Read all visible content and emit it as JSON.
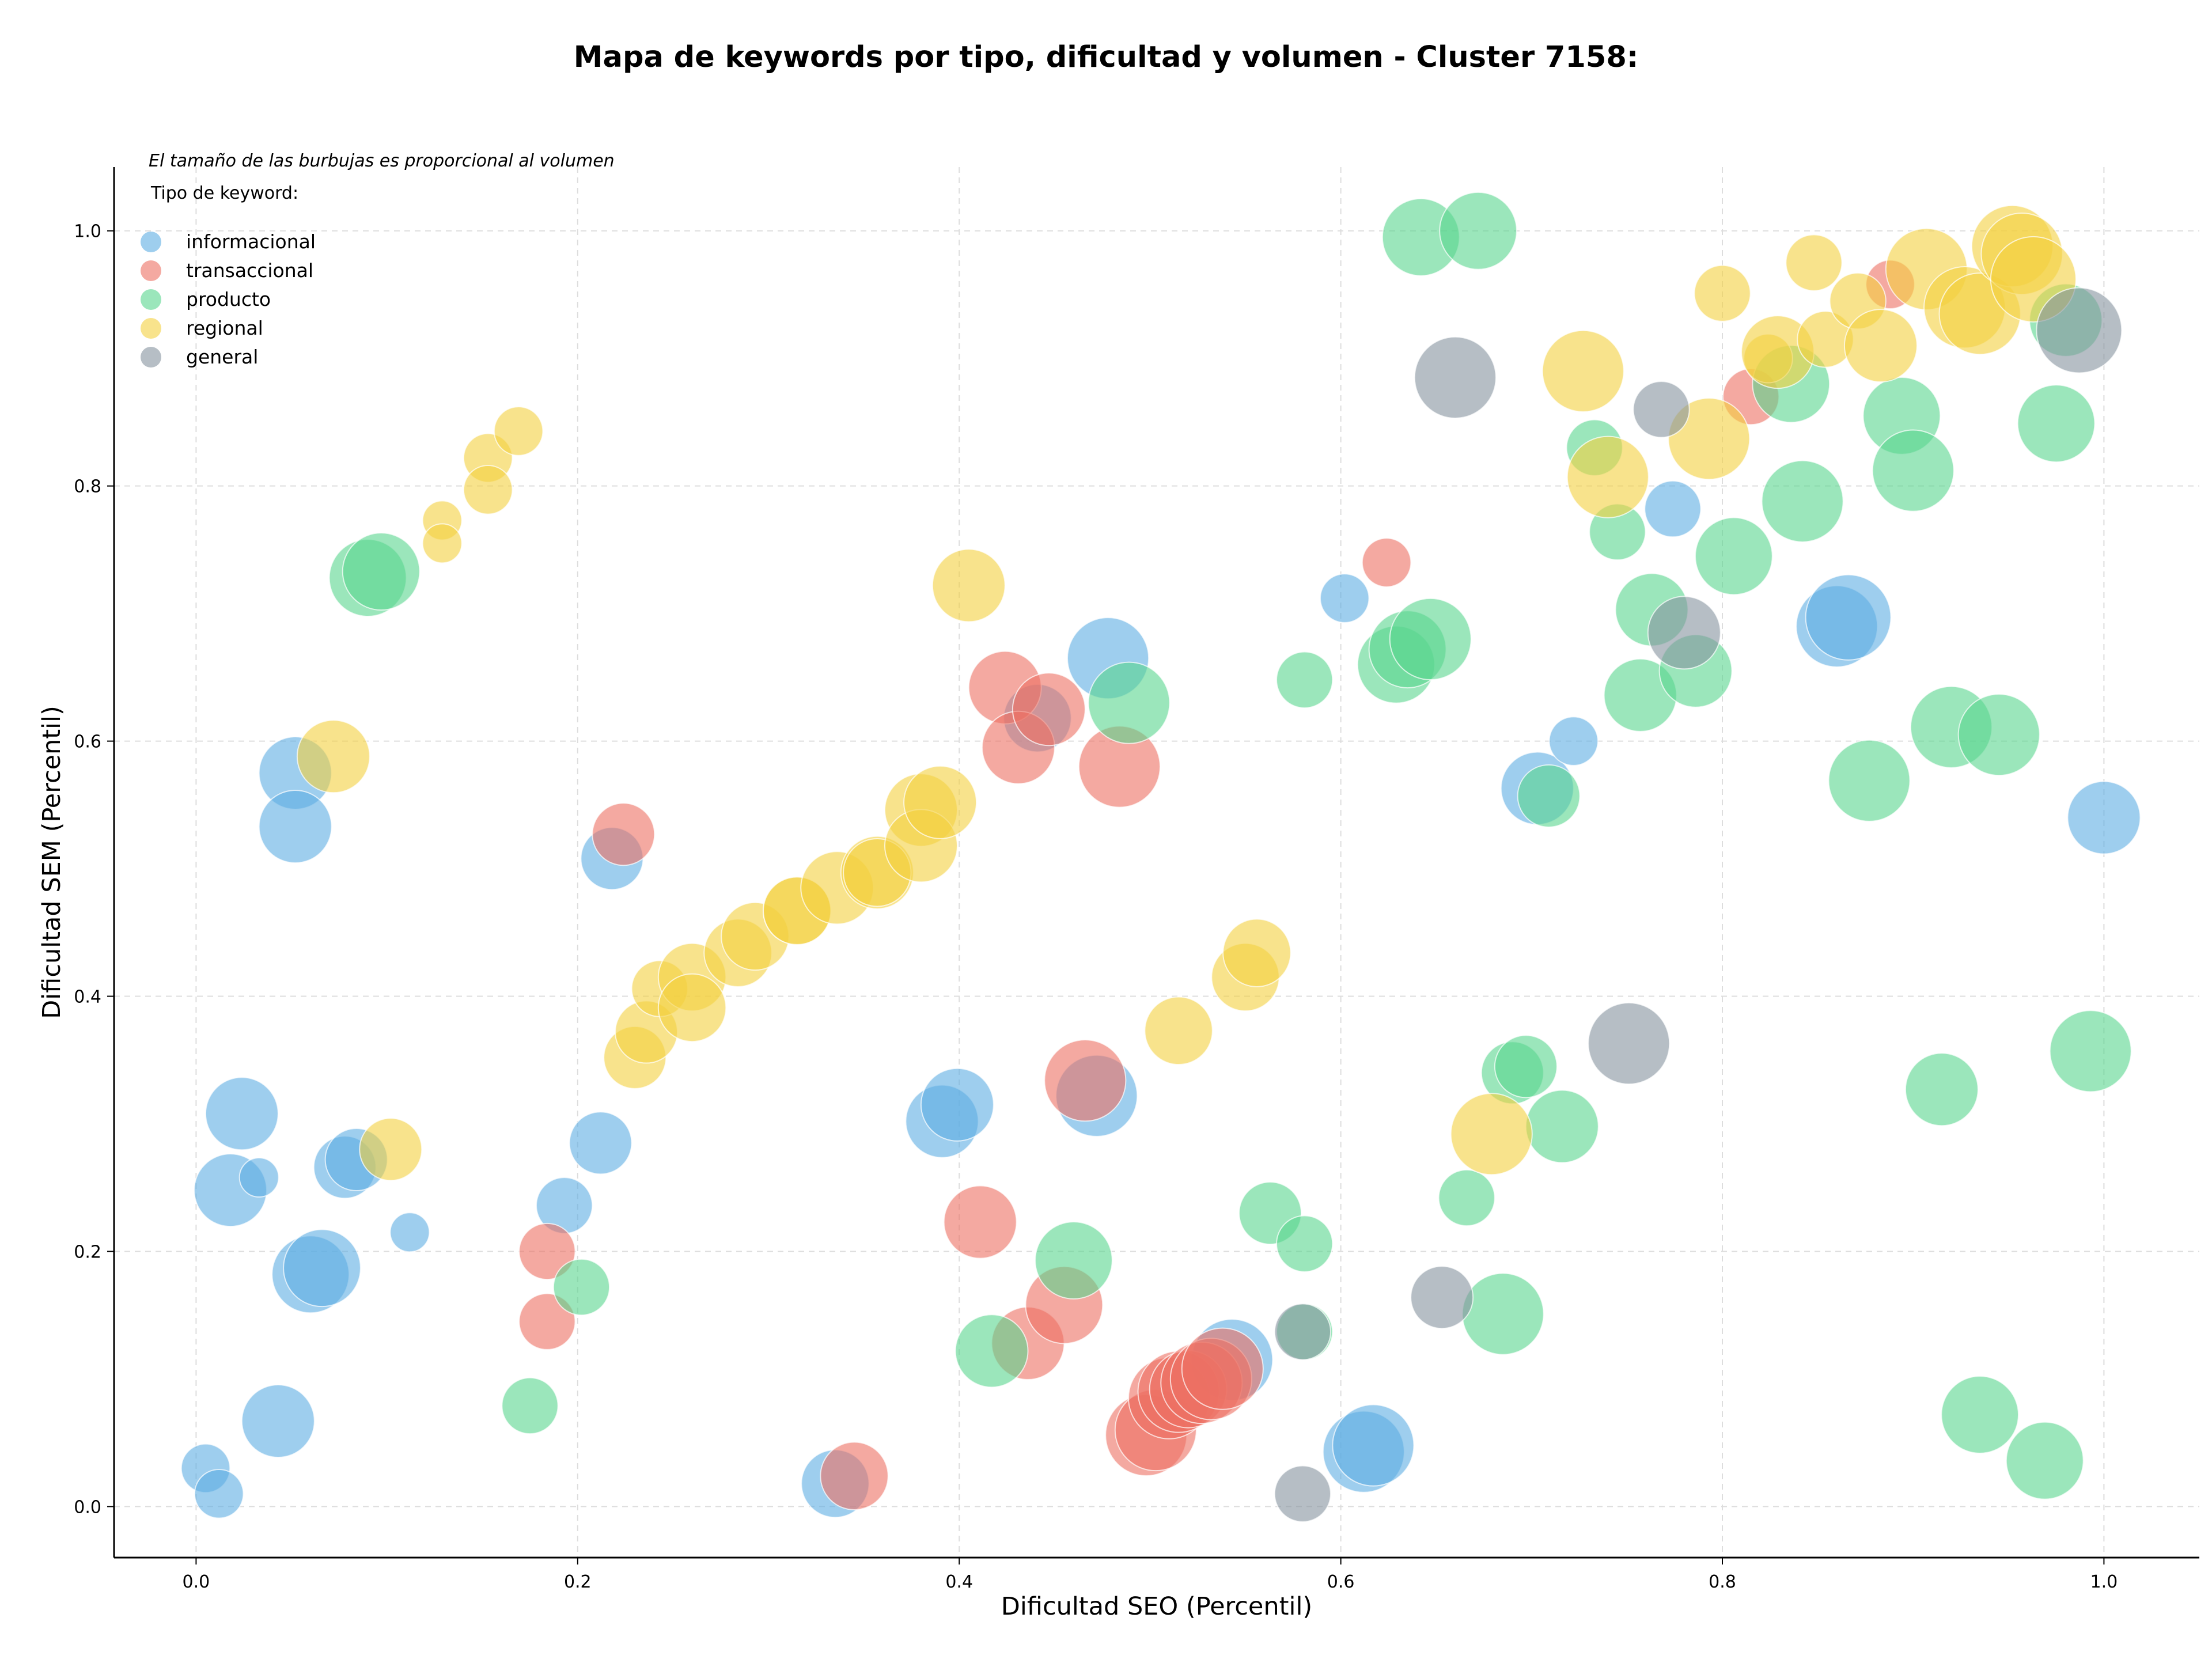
{
  "chart_data": {
    "type": "scatter",
    "title": "Mapa de keywords por tipo, dificultad y volumen - Cluster 7158:",
    "xlabel": "Dificultad SEO (Percentil)",
    "ylabel": "Dificultad SEM (Percentil)",
    "note": "El tamaño de las burbujas es proporcional al volumen",
    "legend_title": "Tipo de keyword:",
    "legend_position": "top-left",
    "grid": true,
    "xlim": [
      -0.043,
      1.05
    ],
    "ylim": [
      -0.04,
      1.05
    ],
    "xticks": [
      "0.0",
      "0.2",
      "0.4",
      "0.6",
      "0.8",
      "1.0"
    ],
    "yticks": [
      "0.0",
      "0.2",
      "0.4",
      "0.6",
      "0.8",
      "1.0"
    ],
    "size_encoding": "volume (relative, 1-10)",
    "series": [
      {
        "name": "informacional",
        "color": "#5DADE2",
        "points": [
          [
            0.005,
            0.03,
            2
          ],
          [
            0.012,
            0.01,
            2
          ],
          [
            0.018,
            0.248,
            6
          ],
          [
            0.024,
            0.308,
            6
          ],
          [
            0.033,
            0.258,
            1
          ],
          [
            0.043,
            0.067,
            6
          ],
          [
            0.052,
            0.575,
            6
          ],
          [
            0.052,
            0.533,
            6
          ],
          [
            0.06,
            0.182,
            7
          ],
          [
            0.066,
            0.187,
            7
          ],
          [
            0.078,
            0.266,
            4
          ],
          [
            0.084,
            0.272,
            4
          ],
          [
            0.112,
            0.215,
            1
          ],
          [
            0.193,
            0.236,
            3
          ],
          [
            0.212,
            0.285,
            4
          ],
          [
            0.218,
            0.508,
            4
          ],
          [
            0.335,
            0.018,
            5
          ],
          [
            0.391,
            0.302,
            6
          ],
          [
            0.399,
            0.315,
            6
          ],
          [
            0.441,
            0.618,
            5
          ],
          [
            0.472,
            0.322,
            8
          ],
          [
            0.478,
            0.665,
            8
          ],
          [
            0.543,
            0.115,
            8
          ],
          [
            0.602,
            0.712,
            2
          ],
          [
            0.612,
            0.043,
            8
          ],
          [
            0.617,
            0.048,
            8
          ],
          [
            0.703,
            0.563,
            6
          ],
          [
            0.722,
            0.6,
            2
          ],
          [
            0.774,
            0.782,
            3
          ],
          [
            0.86,
            0.69,
            8
          ],
          [
            0.866,
            0.697,
            9
          ],
          [
            1.0,
            0.54,
            6
          ]
        ]
      },
      {
        "name": "transaccional",
        "color": "#EC7063",
        "points": [
          [
            0.184,
            0.2,
            3
          ],
          [
            0.184,
            0.145,
            3
          ],
          [
            0.224,
            0.527,
            4
          ],
          [
            0.345,
            0.024,
            5
          ],
          [
            0.411,
            0.223,
            6
          ],
          [
            0.424,
            0.642,
            6
          ],
          [
            0.431,
            0.595,
            6
          ],
          [
            0.436,
            0.128,
            6
          ],
          [
            0.447,
            0.625,
            6
          ],
          [
            0.455,
            0.158,
            7
          ],
          [
            0.466,
            0.334,
            8
          ],
          [
            0.484,
            0.58,
            8
          ],
          [
            0.498,
            0.056,
            8
          ],
          [
            0.503,
            0.06,
            8
          ],
          [
            0.51,
            0.085,
            8
          ],
          [
            0.515,
            0.09,
            8
          ],
          [
            0.52,
            0.092,
            7
          ],
          [
            0.527,
            0.097,
            8
          ],
          [
            0.532,
            0.1,
            8
          ],
          [
            0.538,
            0.108,
            8
          ],
          [
            0.624,
            0.74,
            2
          ],
          [
            0.815,
            0.87,
            3
          ],
          [
            0.888,
            0.958,
            2
          ]
        ]
      },
      {
        "name": "producto",
        "color": "#58D68D",
        "points": [
          [
            0.09,
            0.728,
            7
          ],
          [
            0.097,
            0.733,
            7
          ],
          [
            0.175,
            0.079,
            3
          ],
          [
            0.202,
            0.172,
            3
          ],
          [
            0.417,
            0.122,
            6
          ],
          [
            0.46,
            0.193,
            7
          ],
          [
            0.489,
            0.63,
            8
          ],
          [
            0.563,
            0.23,
            4
          ],
          [
            0.581,
            0.648,
            3
          ],
          [
            0.581,
            0.206,
            3
          ],
          [
            0.581,
            0.137,
            3
          ],
          [
            0.629,
            0.66,
            7
          ],
          [
            0.635,
            0.672,
            7
          ],
          [
            0.642,
            0.995,
            7
          ],
          [
            0.647,
            0.68,
            8
          ],
          [
            0.672,
            1.0,
            7
          ],
          [
            0.666,
            0.242,
            3
          ],
          [
            0.685,
            0.151,
            8
          ],
          [
            0.69,
            0.34,
            4
          ],
          [
            0.697,
            0.345,
            4
          ],
          [
            0.709,
            0.557,
            4
          ],
          [
            0.716,
            0.298,
            6
          ],
          [
            0.733,
            0.83,
            3
          ],
          [
            0.745,
            0.764,
            3
          ],
          [
            0.757,
            0.636,
            6
          ],
          [
            0.763,
            0.703,
            6
          ],
          [
            0.786,
            0.655,
            6
          ],
          [
            0.806,
            0.745,
            7
          ],
          [
            0.836,
            0.88,
            7
          ],
          [
            0.842,
            0.788,
            8
          ],
          [
            0.877,
            0.569,
            8
          ],
          [
            0.894,
            0.855,
            7
          ],
          [
            0.9,
            0.812,
            8
          ],
          [
            0.915,
            0.327,
            6
          ],
          [
            0.92,
            0.611,
            8
          ],
          [
            0.935,
            0.072,
            7
          ],
          [
            0.945,
            0.605,
            8
          ],
          [
            0.969,
            0.036,
            7
          ],
          [
            0.975,
            0.849,
            7
          ],
          [
            0.98,
            0.93,
            6
          ],
          [
            0.993,
            0.357,
            8
          ]
        ]
      },
      {
        "name": "regional",
        "color": "#F4D03F",
        "points": [
          [
            0.072,
            0.588,
            6
          ],
          [
            0.102,
            0.28,
            4
          ],
          [
            0.129,
            0.773,
            1
          ],
          [
            0.129,
            0.755,
            1
          ],
          [
            0.153,
            0.822,
            2
          ],
          [
            0.153,
            0.797,
            2
          ],
          [
            0.169,
            0.843,
            2
          ],
          [
            0.23,
            0.352,
            4
          ],
          [
            0.236,
            0.372,
            4
          ],
          [
            0.243,
            0.406,
            3
          ],
          [
            0.26,
            0.415,
            5
          ],
          [
            0.26,
            0.391,
            5
          ],
          [
            0.284,
            0.434,
            5
          ],
          [
            0.293,
            0.447,
            5
          ],
          [
            0.315,
            0.467,
            5
          ],
          [
            0.315,
            0.467,
            5
          ],
          [
            0.336,
            0.485,
            6
          ],
          [
            0.357,
            0.497,
            6
          ],
          [
            0.357,
            0.497,
            5
          ],
          [
            0.38,
            0.546,
            6
          ],
          [
            0.38,
            0.518,
            6
          ],
          [
            0.39,
            0.552,
            6
          ],
          [
            0.405,
            0.722,
            6
          ],
          [
            0.515,
            0.373,
            5
          ],
          [
            0.55,
            0.415,
            5
          ],
          [
            0.556,
            0.434,
            5
          ],
          [
            0.679,
            0.292,
            8
          ],
          [
            0.727,
            0.89,
            8
          ],
          [
            0.74,
            0.807,
            8
          ],
          [
            0.793,
            0.837,
            8
          ],
          [
            0.8,
            0.951,
            3
          ],
          [
            0.824,
            0.9,
            2
          ],
          [
            0.829,
            0.905,
            6
          ],
          [
            0.848,
            0.975,
            3
          ],
          [
            0.854,
            0.915,
            3
          ],
          [
            0.871,
            0.945,
            3
          ],
          [
            0.883,
            0.91,
            6
          ],
          [
            0.907,
            0.97,
            8
          ],
          [
            0.927,
            0.94,
            8
          ],
          [
            0.935,
            0.935,
            8
          ],
          [
            0.952,
            0.988,
            8
          ],
          [
            0.957,
            0.982,
            8
          ],
          [
            0.963,
            0.962,
            9
          ]
        ]
      },
      {
        "name": "general",
        "color": "#85929E",
        "points": [
          [
            0.58,
            0.01,
            3
          ],
          [
            0.58,
            0.137,
            3
          ],
          [
            0.653,
            0.164,
            4
          ],
          [
            0.66,
            0.885,
            8
          ],
          [
            0.751,
            0.363,
            8
          ],
          [
            0.768,
            0.86,
            3
          ],
          [
            0.78,
            0.685,
            6
          ],
          [
            0.987,
            0.922,
            9
          ]
        ]
      }
    ]
  }
}
